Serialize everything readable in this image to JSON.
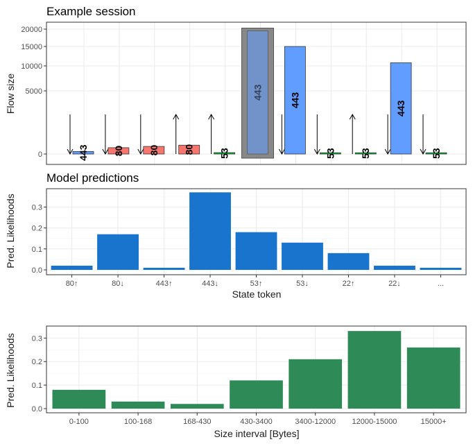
{
  "colors": {
    "port_443": "#619CFF",
    "port_80": "#F8766D",
    "port_53": "#00BA38",
    "highlight_box": "#888888",
    "token_bars": "#1874CD",
    "size_bars": "#2E8B57"
  },
  "chart_data": [
    {
      "type": "bar",
      "title": "Example session",
      "ylabel": "Flow size",
      "y_ticks": [
        "0",
        "5000",
        "10000",
        "15000",
        "20000"
      ],
      "highlighted_index": 5,
      "bars": [
        {
          "label": "443",
          "direction": "down",
          "port": "443",
          "value": 200
        },
        {
          "label": "80",
          "direction": "down",
          "port": "80",
          "value": 500
        },
        {
          "label": "80",
          "direction": "down",
          "port": "80",
          "value": 600
        },
        {
          "label": "80",
          "direction": "up",
          "port": "80",
          "value": 700
        },
        {
          "label": "53",
          "direction": "up",
          "port": "53",
          "value": 110
        },
        {
          "label": "443",
          "direction": "down",
          "port": "443",
          "value": 19500
        },
        {
          "label": "443",
          "direction": "down",
          "port": "443",
          "value": 15000
        },
        {
          "label": "53",
          "direction": "down",
          "port": "53",
          "value": 100
        },
        {
          "label": "53",
          "direction": "up",
          "port": "53",
          "value": 100
        },
        {
          "label": "443",
          "direction": "down",
          "port": "443",
          "value": 10800
        },
        {
          "label": "53",
          "direction": "down",
          "port": "53",
          "value": 100
        }
      ]
    },
    {
      "type": "bar",
      "title": "Model predictions",
      "xlabel": "State token",
      "ylabel": "Pred. Likelihoods",
      "ylim": [
        0,
        0.37
      ],
      "y_ticks": [
        "0.0",
        "0.1",
        "0.2",
        "0.3"
      ],
      "categories": [
        "80↑",
        "80↓",
        "443↑",
        "443↓",
        "53↑",
        "53↓",
        "22↑",
        "22↓",
        "..."
      ],
      "values": [
        0.02,
        0.17,
        0.01,
        0.37,
        0.18,
        0.13,
        0.08,
        0.02,
        0.01
      ]
    },
    {
      "type": "bar",
      "xlabel": "Size interval [Bytes]",
      "ylabel": "Pred. Likelihoods",
      "ylim": [
        0,
        0.33
      ],
      "y_ticks": [
        "0.0",
        "0.1",
        "0.2",
        "0.3"
      ],
      "categories": [
        "0-100",
        "100-168",
        "168-430",
        "430-3400",
        "3400-12000",
        "12000-15000",
        "15000+"
      ],
      "values": [
        0.08,
        0.03,
        0.02,
        0.12,
        0.21,
        0.33,
        0.26
      ]
    }
  ]
}
